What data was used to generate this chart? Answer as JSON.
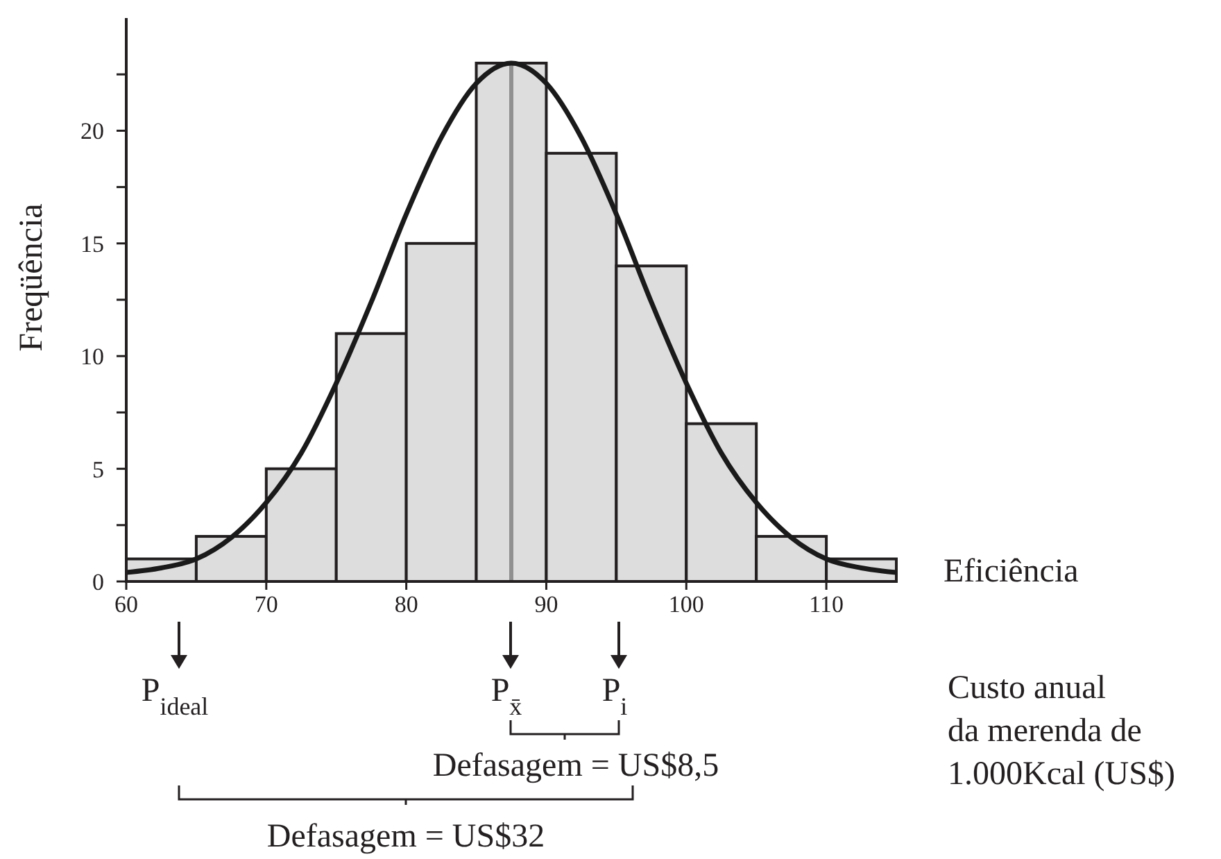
{
  "chart_data": {
    "type": "histogram",
    "xlabel": "Eficiência",
    "ylabel": "Freqüência",
    "bins": [
      60,
      65,
      70,
      75,
      80,
      85,
      90,
      95,
      100,
      105,
      110,
      115
    ],
    "values": [
      1,
      2,
      5,
      11,
      15,
      23,
      19,
      14,
      7,
      2,
      1
    ],
    "color": "#dddddd",
    "series": [
      {
        "type": "line",
        "color": "#1a1a1a",
        "x": [
          60,
          62.5,
          65,
          67.5,
          70,
          72.5,
          75,
          77.5,
          80,
          82.5,
          85,
          87.5,
          90,
          92.5,
          95,
          97.5,
          100,
          102.5,
          105,
          107.5,
          110,
          112.5,
          115
        ],
        "values": [
          0.4,
          0.6,
          1.0,
          1.95,
          3.5,
          5.7,
          8.8,
          12.4,
          16.3,
          19.7,
          22.1,
          23,
          22.1,
          19.7,
          16.3,
          12.4,
          8.8,
          5.7,
          3.5,
          1.95,
          1.0,
          0.6,
          0.4
        ]
      }
    ],
    "xlim": [
      60,
      115
    ],
    "ylim": [
      0,
      25
    ],
    "xticks": [
      60,
      70,
      80,
      90,
      100,
      110
    ],
    "yticks": [
      0,
      {
        "value": 2.5,
        "label": null
      },
      5,
      {
        "value": 7.5,
        "label": null
      },
      10,
      {
        "value": 12.5,
        "label": null
      },
      15,
      {
        "value": 17.5,
        "label": null
      },
      20,
      {
        "value": 22.5,
        "label": null
      }
    ],
    "ref_lines": [
      {
        "axis": "x",
        "value": 87.5,
        "color": "#909090"
      }
    ],
    "annotations": [
      "P$_{ideal}$",
      "P$_{x̄}$",
      "P$_{i}$",
      "Defasagem = US$8,5",
      "Defasagem = US$32",
      "Custo anual\nda merenda de\n1.000Kcal (US$)"
    ],
    "grid": false
  }
}
